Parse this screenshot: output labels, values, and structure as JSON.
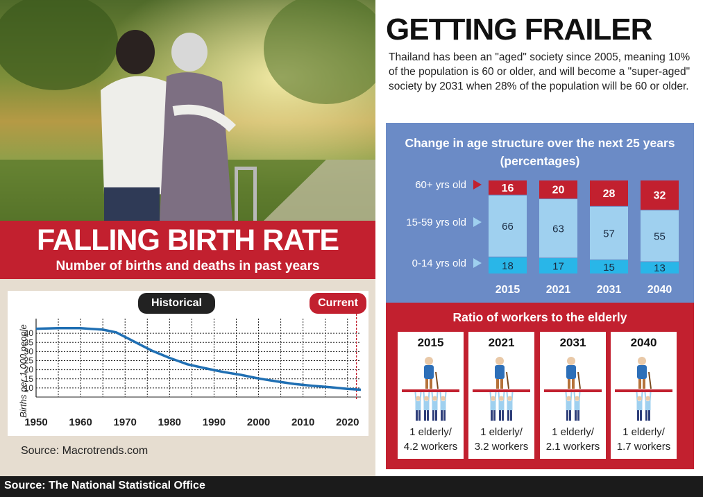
{
  "falling_birth_rate": {
    "title": "FALLING BIRTH RATE",
    "subtitle": "Number of births and deaths in past years",
    "historical_label": "Historical",
    "current_label": "Current",
    "source": "Source: Macrotrends.com"
  },
  "getting_frailer": {
    "title": "GETTING FRAILER",
    "description": "Thailand has been an \"aged\" society since 2005, meaning 10% of the population is 60 or older, and will become a \"super-aged\" society by 2031 when 28% of the population will be 60 or older."
  },
  "age_structure_title": "Change in age structure over the next 25 years (percentages)",
  "ratio": {
    "title": "Ratio of workers to the elderly",
    "cards": [
      {
        "year": "2015",
        "line1": "1 elderly/",
        "line2": "4.2 workers"
      },
      {
        "year": "2021",
        "line1": "1 elderly/",
        "line2": "3.2 workers"
      },
      {
        "year": "2031",
        "line1": "1 elderly/",
        "line2": "2.1 workers"
      },
      {
        "year": "2040",
        "line1": "1 elderly/",
        "line2": "1.7 workers"
      }
    ]
  },
  "footer": "Source: The National Statistical Office",
  "colors": {
    "red": "#c2202f",
    "blue_panel": "#6b8bc6",
    "light_blue": "#9fd0ef",
    "cyan": "#29b6e8",
    "line_blue": "#1f6fb3"
  },
  "chart_data": [
    {
      "type": "line",
      "title": "",
      "xlabel": "",
      "ylabel": "Births per 1,000 people",
      "xlim": [
        1950,
        2023
      ],
      "ylim": [
        5,
        45
      ],
      "grid": true,
      "x_ticks": [
        1950,
        1960,
        1970,
        1980,
        1990,
        2000,
        2010,
        2020
      ],
      "y_ticks": [
        10,
        15,
        20,
        25,
        30,
        35,
        40
      ],
      "series": [
        {
          "name": "",
          "x": [
            1950,
            1955,
            1960,
            1965,
            1968,
            1972,
            1976,
            1980,
            1984,
            1988,
            1992,
            1996,
            2000,
            2004,
            2008,
            2012,
            2016,
            2020,
            2023
          ],
          "y": [
            42.5,
            42.8,
            42.8,
            42.0,
            40.5,
            35.5,
            30.5,
            26.5,
            23.0,
            20.8,
            18.8,
            17.2,
            15.2,
            13.6,
            12.2,
            11.2,
            10.4,
            9.5,
            9.0
          ]
        }
      ]
    },
    {
      "type": "bar",
      "stacked": true,
      "title": "Change in age structure over the next 25 years (percentages)",
      "categories": [
        "2015",
        "2021",
        "2031",
        "2040"
      ],
      "series": [
        {
          "name": "0-14 yrs old",
          "values": [
            18,
            17,
            15,
            13
          ]
        },
        {
          "name": "15-59 yrs old",
          "values": [
            66,
            63,
            57,
            55
          ]
        },
        {
          "name": "60+ yrs old",
          "values": [
            16,
            20,
            28,
            32
          ]
        }
      ]
    }
  ]
}
